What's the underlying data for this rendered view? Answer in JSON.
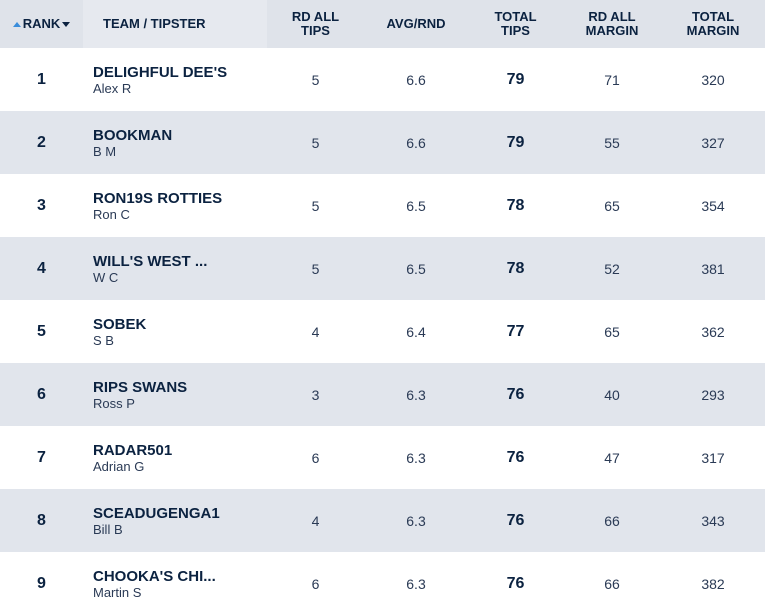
{
  "header": {
    "rank": "RANK",
    "team": "TEAM / TIPSTER",
    "rd_all_tips": "RD ALL\nTIPS",
    "avg_rnd": "AVG/RND",
    "total_tips": "TOTAL\nTIPS",
    "rd_all_margin": "RD ALL\nMARGIN",
    "total_margin": "TOTAL\nMARGIN"
  },
  "rows": [
    {
      "rank": "1",
      "team": "DELIGHFUL DEE'S",
      "tipster": "Alex R",
      "rd_all_tips": "5",
      "avg_rnd": "6.6",
      "total_tips": "79",
      "rd_all_margin": "71",
      "total_margin": "320"
    },
    {
      "rank": "2",
      "team": "BOOKMAN",
      "tipster": "B M",
      "rd_all_tips": "5",
      "avg_rnd": "6.6",
      "total_tips": "79",
      "rd_all_margin": "55",
      "total_margin": "327"
    },
    {
      "rank": "3",
      "team": "RON19S ROTTIES",
      "tipster": "Ron C",
      "rd_all_tips": "5",
      "avg_rnd": "6.5",
      "total_tips": "78",
      "rd_all_margin": "65",
      "total_margin": "354"
    },
    {
      "rank": "4",
      "team": "WILL'S WEST ...",
      "tipster": "W C",
      "rd_all_tips": "5",
      "avg_rnd": "6.5",
      "total_tips": "78",
      "rd_all_margin": "52",
      "total_margin": "381"
    },
    {
      "rank": "5",
      "team": "SOBEK",
      "tipster": "S B",
      "rd_all_tips": "4",
      "avg_rnd": "6.4",
      "total_tips": "77",
      "rd_all_margin": "65",
      "total_margin": "362"
    },
    {
      "rank": "6",
      "team": "RIPS SWANS",
      "tipster": "Ross P",
      "rd_all_tips": "3",
      "avg_rnd": "6.3",
      "total_tips": "76",
      "rd_all_margin": "40",
      "total_margin": "293"
    },
    {
      "rank": "7",
      "team": "RADAR501",
      "tipster": "Adrian G",
      "rd_all_tips": "6",
      "avg_rnd": "6.3",
      "total_tips": "76",
      "rd_all_margin": "47",
      "total_margin": "317"
    },
    {
      "rank": "8",
      "team": "SCEADUGENGA1",
      "tipster": "Bill B",
      "rd_all_tips": "4",
      "avg_rnd": "6.3",
      "total_tips": "76",
      "rd_all_margin": "66",
      "total_margin": "343"
    },
    {
      "rank": "9",
      "team": "CHOOKA'S CHI...",
      "tipster": "Martin S",
      "rd_all_tips": "6",
      "avg_rnd": "6.3",
      "total_tips": "76",
      "rd_all_margin": "66",
      "total_margin": "382"
    }
  ]
}
